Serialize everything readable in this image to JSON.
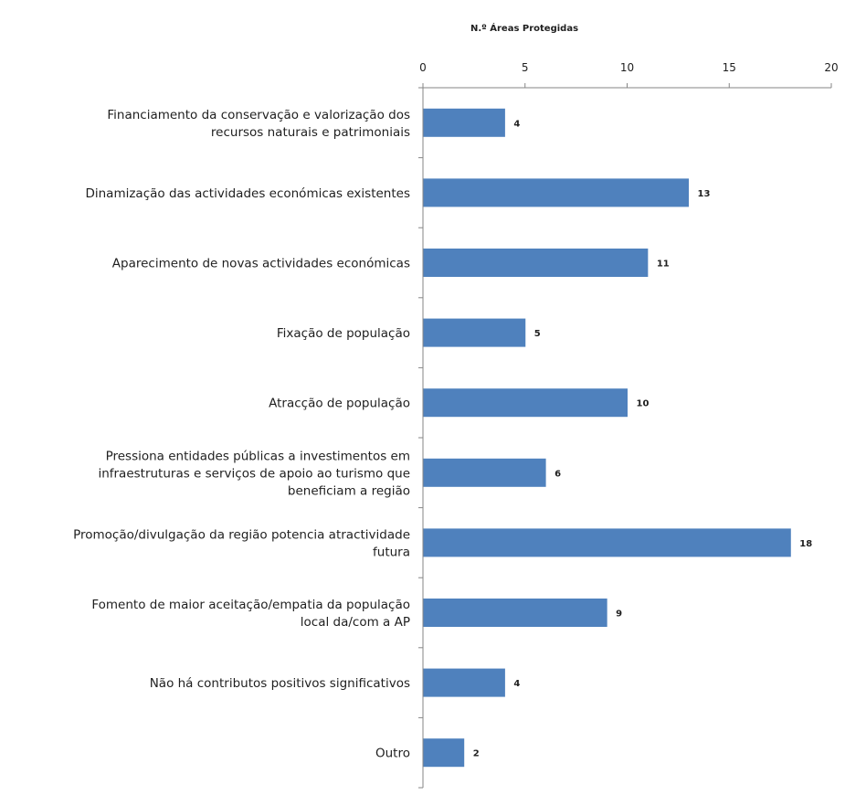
{
  "chart_data": {
    "type": "bar",
    "orientation": "horizontal",
    "title": "",
    "xlabel": "N.º Áreas Protegidas",
    "ylabel": "",
    "x_axis_position": "top",
    "xlim": [
      0,
      20
    ],
    "xticks": [
      0,
      5,
      10,
      15,
      20
    ],
    "grid": false,
    "legend": "none",
    "bar_color": "#4f81bd",
    "categories": [
      "Financiamento da conservação e valorização dos\nrecursos naturais e patrimoniais",
      "Dinamização das actividades económicas existentes",
      "Aparecimento de novas actividades económicas",
      "Fixação de população",
      "Atracção de população",
      "Pressiona entidades públicas a investimentos em\ninfraestruturas e serviços de apoio ao turismo que\nbeneficiam a região",
      "Promoção/divulgação da região potencia atractividade\nfutura",
      "Fomento de maior aceitação/empatia da população\nlocal da/com a AP",
      "Não há contributos positivos significativos",
      "Outro"
    ],
    "values": [
      4,
      13,
      11,
      5,
      10,
      6,
      18,
      9,
      4,
      2
    ]
  }
}
